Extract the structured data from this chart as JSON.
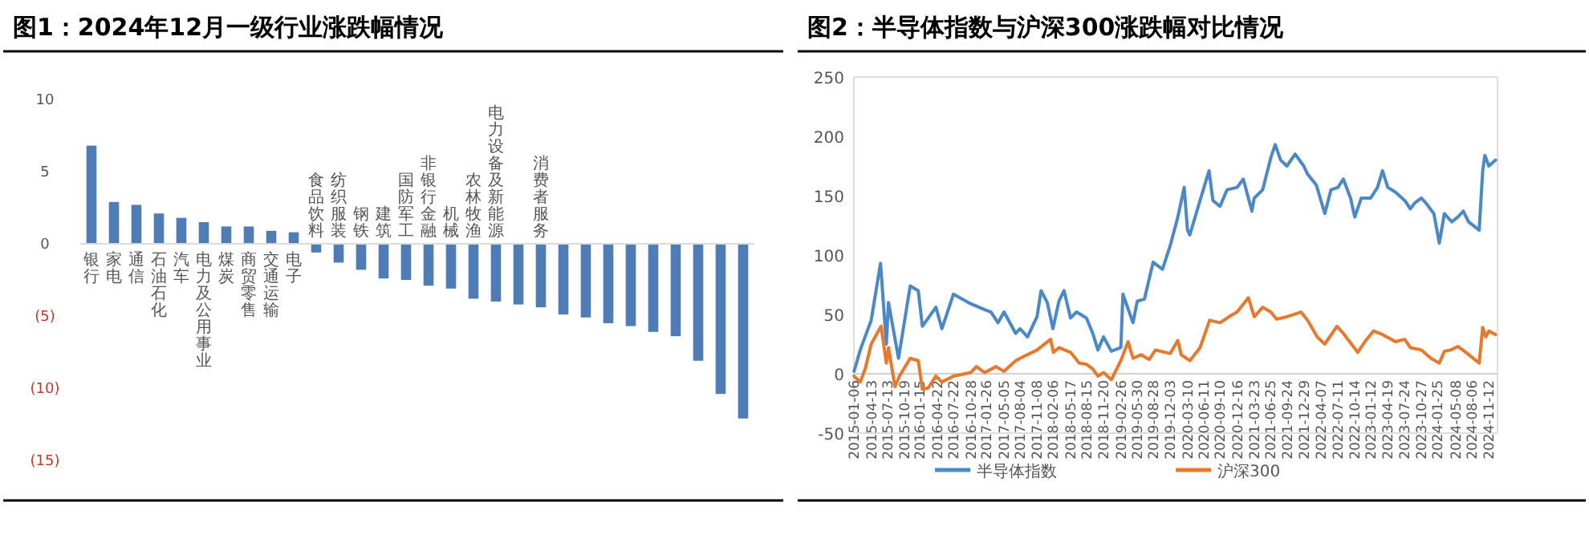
{
  "chart_data": [
    {
      "type": "bar",
      "title": "图1：2024年12月一级行业涨跌幅情况",
      "color": "#4f7cb5",
      "categories": [
        "银行",
        "家电",
        "通信",
        "石油石化",
        "汽车",
        "电力及公用事业",
        "煤炭",
        "商贸零售",
        "交通运输",
        "电子",
        "食品饮料",
        "纺织服装",
        "钢铁",
        "建筑",
        "国防军工",
        "非银行金融",
        "机械",
        "农林牧渔",
        "电力设备及新能源",
        null,
        "消费者服务",
        null,
        null,
        null,
        null,
        null,
        null,
        null,
        null,
        null
      ],
      "values": [
        6.8,
        2.9,
        2.7,
        2.1,
        1.8,
        1.5,
        1.2,
        1.2,
        0.9,
        0.8,
        -0.6,
        -1.3,
        -1.8,
        -2.4,
        -2.5,
        -2.9,
        -3.1,
        -3.8,
        -4.0,
        -4.2,
        -4.4,
        -4.9,
        -5.1,
        -5.5,
        -5.7,
        -6.1,
        -6.4,
        -8.1,
        -10.4,
        -12.1
      ],
      "ylim": [
        -15,
        10
      ],
      "yticks": [
        10,
        5,
        0,
        {
          "value": -5,
          "label": "(5)"
        },
        {
          "value": -10,
          "label": "(10)"
        },
        {
          "value": -15,
          "label": "(15)"
        }
      ]
    },
    {
      "type": "line",
      "title": "图2：半导体指数与沪深300涨跌幅对比情况",
      "legend": "bottom",
      "xlim": [
        "2015-01-05",
        "2024-12-31"
      ],
      "ylim": [
        -50,
        250
      ],
      "yticks": [
        -50,
        0,
        50,
        100,
        150,
        200,
        250
      ],
      "xticks": [
        "2015-01-06",
        "2015-04-13",
        "2015-07-13",
        "2015-10-19",
        "2016-01-15",
        "2016-04-22",
        "2016-07-22",
        "2016-10-28",
        "2017-01-26",
        "2017-05-05",
        "2017-08-04",
        "2017-11-08",
        "2018-02-06",
        "2018-05-17",
        "2018-08-15",
        "2018-11-20",
        "2019-02-26",
        "2019-05-30",
        "2019-08-28",
        "2019-12-03",
        "2020-03-10",
        "2020-06-11",
        "2020-09-10",
        "2020-12-16",
        "2021-03-23",
        "2021-06-25",
        "2021-09-24",
        "2021-12-29",
        "2022-04-07",
        "2022-07-11",
        "2022-10-14",
        "2023-01-12",
        "2023-04-19",
        "2023-07-24",
        "2023-10-27",
        "2024-01-25",
        "2024-05-08",
        "2024-08-06",
        "2024-11-12"
      ],
      "series": [
        {
          "name": "半导体指数",
          "color": "#4a88c7",
          "x": [
            "2015-01-06",
            "2015-02-10",
            "2015-04-13",
            "2015-06-05",
            "2015-07-08",
            "2015-07-20",
            "2015-09-15",
            "2015-11-20",
            "2016-01-05",
            "2016-01-28",
            "2016-04-14",
            "2016-05-18",
            "2016-07-22",
            "2016-10-28",
            "2017-01-16",
            "2017-02-20",
            "2017-04-01",
            "2017-05-05",
            "2017-07-10",
            "2017-08-04",
            "2017-09-15",
            "2017-11-08",
            "2017-12-01",
            "2018-01-05",
            "2018-02-06",
            "2018-03-12",
            "2018-04-10",
            "2018-05-17",
            "2018-06-20",
            "2018-08-15",
            "2018-09-20",
            "2018-10-19",
            "2018-11-20",
            "2019-01-03",
            "2019-02-26",
            "2019-03-10",
            "2019-05-06",
            "2019-05-30",
            "2019-07-10",
            "2019-08-28",
            "2019-10-20",
            "2019-12-03",
            "2020-01-15",
            "2020-02-20",
            "2020-03-10",
            "2020-03-23",
            "2020-05-10",
            "2020-07-10",
            "2020-08-01",
            "2020-09-10",
            "2020-10-20",
            "2020-12-16",
            "2021-01-20",
            "2021-03-10",
            "2021-03-23",
            "2021-05-10",
            "2021-06-25",
            "2021-07-20",
            "2021-08-20",
            "2021-09-24",
            "2021-11-10",
            "2021-12-29",
            "2022-01-20",
            "2022-03-10",
            "2022-04-27",
            "2022-06-01",
            "2022-07-11",
            "2022-08-10",
            "2022-09-20",
            "2022-10-14",
            "2022-11-20",
            "2023-01-12",
            "2023-02-20",
            "2023-03-20",
            "2023-04-19",
            "2023-06-01",
            "2023-07-24",
            "2023-08-25",
            "2023-09-20",
            "2023-10-27",
            "2023-11-20",
            "2024-01-05",
            "2024-02-05",
            "2024-03-05",
            "2024-04-15",
            "2024-05-20",
            "2024-06-20",
            "2024-07-20",
            "2024-09-18",
            "2024-10-08",
            "2024-10-20",
            "2024-11-12",
            "2024-12-20"
          ],
          "values": [
            2,
            20,
            45,
            93,
            25,
            60,
            13,
            74,
            70,
            40,
            56,
            38,
            67,
            59,
            54,
            52,
            43,
            52,
            34,
            38,
            31,
            48,
            70,
            60,
            38,
            61,
            70,
            47,
            52,
            47,
            34,
            20,
            31,
            19,
            22,
            67,
            43,
            61,
            63,
            94,
            88,
            108,
            132,
            157,
            121,
            117,
            141,
            171,
            146,
            141,
            155,
            157,
            164,
            137,
            148,
            155,
            182,
            193,
            180,
            175,
            185,
            175,
            168,
            159,
            135,
            155,
            157,
            164,
            148,
            132,
            148,
            148,
            157,
            171,
            157,
            153,
            146,
            139,
            144,
            148,
            144,
            135,
            110,
            135,
            128,
            132,
            137,
            128,
            121,
            171,
            184,
            175,
            180
          ]
        },
        {
          "name": "沪深300",
          "color": "#e8782c",
          "x": [
            "2015-01-06",
            "2015-02-10",
            "2015-03-10",
            "2015-04-13",
            "2015-06-08",
            "2015-07-08",
            "2015-07-20",
            "2015-08-26",
            "2015-09-20",
            "2015-11-20",
            "2016-01-05",
            "2016-01-28",
            "2016-03-01",
            "2016-04-14",
            "2016-05-18",
            "2016-07-22",
            "2016-10-28",
            "2016-11-29",
            "2017-01-16",
            "2017-03-20",
            "2017-05-05",
            "2017-07-10",
            "2017-08-04",
            "2017-11-08",
            "2018-01-24",
            "2018-02-09",
            "2018-03-12",
            "2018-05-17",
            "2018-07-05",
            "2018-08-15",
            "2018-09-20",
            "2018-10-19",
            "2018-11-20",
            "2019-01-03",
            "2019-02-26",
            "2019-04-08",
            "2019-05-06",
            "2019-06-20",
            "2019-08-06",
            "2019-09-10",
            "2019-12-03",
            "2020-01-15",
            "2020-02-03",
            "2020-03-23",
            "2020-05-20",
            "2020-07-13",
            "2020-09-10",
            "2020-11-10",
            "2020-12-16",
            "2021-02-18",
            "2021-03-23",
            "2021-05-10",
            "2021-06-25",
            "2021-07-28",
            "2021-09-24",
            "2021-12-13",
            "2022-01-20",
            "2022-03-15",
            "2022-04-27",
            "2022-07-05",
            "2022-08-10",
            "2022-10-31",
            "2022-12-10",
            "2023-01-28",
            "2023-03-20",
            "2023-05-08",
            "2023-06-01",
            "2023-07-24",
            "2023-08-25",
            "2023-10-27",
            "2023-12-20",
            "2024-02-05",
            "2024-03-05",
            "2024-04-10",
            "2024-05-20",
            "2024-07-05",
            "2024-09-18",
            "2024-10-08",
            "2024-10-25",
            "2024-11-12",
            "2024-12-20"
          ],
          "values": [
            -2,
            -7,
            4,
            25,
            40,
            9,
            22,
            -11,
            -2,
            13,
            11,
            -13,
            -12,
            -2,
            -7,
            -2,
            1,
            6,
            1,
            6,
            2,
            11,
            13,
            20,
            29,
            18,
            22,
            18,
            9,
            8,
            4,
            -2,
            1,
            -5,
            11,
            27,
            13,
            16,
            12,
            20,
            17,
            28,
            16,
            11,
            22,
            45,
            43,
            49,
            52,
            64,
            48,
            56,
            52,
            46,
            48,
            52,
            45,
            31,
            25,
            40,
            34,
            18,
            27,
            36,
            33,
            29,
            27,
            29,
            22,
            20,
            13,
            9,
            19,
            20,
            23,
            18,
            9,
            39,
            31,
            36,
            33
          ]
        }
      ]
    }
  ]
}
